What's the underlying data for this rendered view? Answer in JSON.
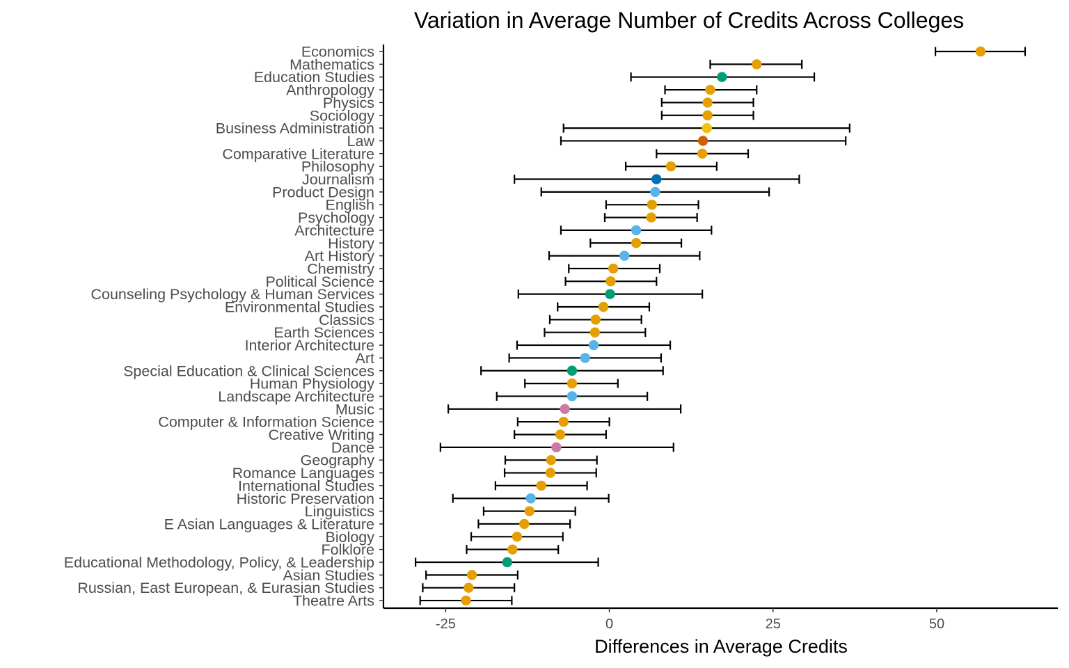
{
  "chart_data": {
    "type": "scatter",
    "subtype": "point-range (dot with error bars)",
    "title": "Variation in Average Number of Credits Across Colleges",
    "xlabel": "Differences in Average Credits",
    "ylabel": "",
    "xlim": [
      -34.5,
      68.5
    ],
    "xticks": [
      -25,
      0,
      25,
      50
    ],
    "xtick_labels": [
      "-25",
      "0",
      "25",
      "50"
    ],
    "grid": false,
    "legend": "none",
    "colors": {
      "orange": "#E69F00",
      "green": "#009E73",
      "yellow": "#F0C20E",
      "vermillion": "#D55E00",
      "blue": "#0072B2",
      "skyblue": "#56B4E9",
      "pink": "#CC79A7"
    },
    "points": [
      {
        "label": "Economics",
        "value": 56.7,
        "lower": 49.8,
        "upper": 63.5,
        "color": "orange"
      },
      {
        "label": "Mathematics",
        "value": 22.5,
        "lower": 15.4,
        "upper": 29.4,
        "color": "orange"
      },
      {
        "label": "Education Studies",
        "value": 17.2,
        "lower": 3.3,
        "upper": 31.3,
        "color": "green"
      },
      {
        "label": "Anthropology",
        "value": 15.4,
        "lower": 8.5,
        "upper": 22.5,
        "color": "orange"
      },
      {
        "label": "Physics",
        "value": 15.0,
        "lower": 8.0,
        "upper": 22.0,
        "color": "orange"
      },
      {
        "label": "Sociology",
        "value": 15.0,
        "lower": 8.0,
        "upper": 22.0,
        "color": "orange"
      },
      {
        "label": "Business Administration",
        "value": 14.9,
        "lower": -7.0,
        "upper": 36.7,
        "color": "yellow"
      },
      {
        "label": "Law",
        "value": 14.3,
        "lower": -7.4,
        "upper": 36.1,
        "color": "vermillion"
      },
      {
        "label": "Comparative Literature",
        "value": 14.2,
        "lower": 7.2,
        "upper": 21.2,
        "color": "orange"
      },
      {
        "label": "Philosophy",
        "value": 9.4,
        "lower": 2.5,
        "upper": 16.4,
        "color": "orange"
      },
      {
        "label": "Journalism",
        "value": 7.2,
        "lower": -14.5,
        "upper": 29.0,
        "color": "blue"
      },
      {
        "label": "Product Design",
        "value": 7.0,
        "lower": -10.4,
        "upper": 24.4,
        "color": "skyblue"
      },
      {
        "label": "English",
        "value": 6.5,
        "lower": -0.5,
        "upper": 13.6,
        "color": "orange"
      },
      {
        "label": "Psychology",
        "value": 6.4,
        "lower": -0.7,
        "upper": 13.4,
        "color": "orange"
      },
      {
        "label": "Architecture",
        "value": 4.1,
        "lower": -7.4,
        "upper": 15.6,
        "color": "skyblue"
      },
      {
        "label": "History",
        "value": 4.1,
        "lower": -2.9,
        "upper": 11.0,
        "color": "orange"
      },
      {
        "label": "Art History",
        "value": 2.3,
        "lower": -9.2,
        "upper": 13.8,
        "color": "skyblue"
      },
      {
        "label": "Chemistry",
        "value": 0.6,
        "lower": -6.2,
        "upper": 7.7,
        "color": "orange"
      },
      {
        "label": "Political Science",
        "value": 0.2,
        "lower": -6.7,
        "upper": 7.2,
        "color": "orange"
      },
      {
        "label": "Counseling Psychology & Human Services",
        "value": 0.1,
        "lower": -13.9,
        "upper": 14.2,
        "color": "green"
      },
      {
        "label": "Environmental Studies",
        "value": -0.9,
        "lower": -7.9,
        "upper": 6.1,
        "color": "orange"
      },
      {
        "label": "Classics",
        "value": -2.1,
        "lower": -9.1,
        "upper": 4.9,
        "color": "orange"
      },
      {
        "label": "Earth Sciences",
        "value": -2.2,
        "lower": -9.9,
        "upper": 5.5,
        "color": "orange"
      },
      {
        "label": "Interior Architecture",
        "value": -2.4,
        "lower": -14.1,
        "upper": 9.3,
        "color": "skyblue"
      },
      {
        "label": "Art",
        "value": -3.7,
        "lower": -15.3,
        "upper": 7.9,
        "color": "skyblue"
      },
      {
        "label": "Special Education & Clinical Sciences",
        "value": -5.7,
        "lower": -19.6,
        "upper": 8.2,
        "color": "green"
      },
      {
        "label": "Human Physiology",
        "value": -5.7,
        "lower": -12.9,
        "upper": 1.3,
        "color": "orange"
      },
      {
        "label": "Landscape Architecture",
        "value": -5.7,
        "lower": -17.2,
        "upper": 5.8,
        "color": "skyblue"
      },
      {
        "label": "Music",
        "value": -6.8,
        "lower": -24.6,
        "upper": 10.9,
        "color": "pink"
      },
      {
        "label": "Computer & Information Science",
        "value": -7.0,
        "lower": -14.0,
        "upper": 0.0,
        "color": "orange"
      },
      {
        "label": "Creative Writing",
        "value": -7.5,
        "lower": -14.5,
        "upper": -0.5,
        "color": "orange"
      },
      {
        "label": "Dance",
        "value": -8.1,
        "lower": -25.8,
        "upper": 9.8,
        "color": "pink"
      },
      {
        "label": "Geography",
        "value": -8.9,
        "lower": -15.9,
        "upper": -1.9,
        "color": "orange"
      },
      {
        "label": "Romance Languages",
        "value": -9.0,
        "lower": -16.0,
        "upper": -2.0,
        "color": "orange"
      },
      {
        "label": "International Studies",
        "value": -10.4,
        "lower": -17.4,
        "upper": -3.4,
        "color": "orange"
      },
      {
        "label": "Historic Preservation",
        "value": -12.0,
        "lower": -23.9,
        "upper": -0.1,
        "color": "skyblue"
      },
      {
        "label": "Linguistics",
        "value": -12.2,
        "lower": -19.2,
        "upper": -5.2,
        "color": "orange"
      },
      {
        "label": "E Asian Languages & Literature",
        "value": -13.0,
        "lower": -20.0,
        "upper": -6.0,
        "color": "orange"
      },
      {
        "label": "Biology",
        "value": -14.1,
        "lower": -21.1,
        "upper": -7.1,
        "color": "orange"
      },
      {
        "label": "Folklore",
        "value": -14.8,
        "lower": -21.8,
        "upper": -7.8,
        "color": "orange"
      },
      {
        "label": "Educational Methodology, Policy, & Leadership",
        "value": -15.6,
        "lower": -29.6,
        "upper": -1.7,
        "color": "green"
      },
      {
        "label": "Asian Studies",
        "value": -21.0,
        "lower": -28.0,
        "upper": -14.0,
        "color": "orange"
      },
      {
        "label": "Russian, East European, & Eurasian Studies",
        "value": -21.5,
        "lower": -28.5,
        "upper": -14.5,
        "color": "orange"
      },
      {
        "label": "Theatre Arts",
        "value": -21.9,
        "lower": -28.9,
        "upper": -14.9,
        "color": "orange"
      }
    ]
  }
}
